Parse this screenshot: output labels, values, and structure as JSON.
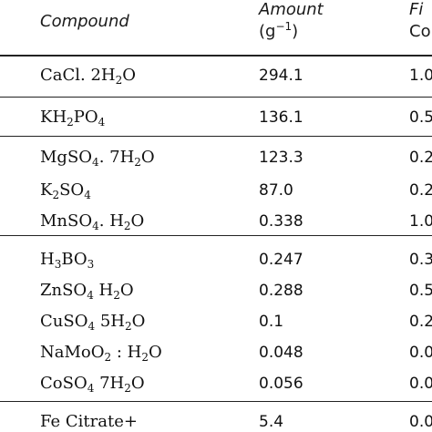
{
  "header": {
    "compound": "Compound",
    "amount_line1": "Amount",
    "amount_unit_base": "(g",
    "amount_unit_exp": "−1",
    "amount_unit_close": ")",
    "final_line1": "Fi",
    "final_line2": "Co"
  },
  "rows": [
    {
      "formula": [
        {
          "t": "CaCl. 2H"
        },
        {
          "s": "2"
        },
        {
          "t": "O"
        }
      ],
      "amount": "294.1",
      "final": "1.0"
    },
    {
      "formula": [
        {
          "t": "KH"
        },
        {
          "s": "2"
        },
        {
          "t": "PO"
        },
        {
          "s": "4"
        }
      ],
      "amount": "136.1",
      "final": "0.5"
    },
    {
      "formula": [
        {
          "t": "MgSO"
        },
        {
          "s": "4"
        },
        {
          "t": ". 7H"
        },
        {
          "s": "2"
        },
        {
          "t": "O"
        }
      ],
      "amount": "123.3",
      "final": "0.2"
    },
    {
      "formula": [
        {
          "t": "K"
        },
        {
          "s": "2"
        },
        {
          "t": "SO"
        },
        {
          "s": "4"
        }
      ],
      "amount": "87.0",
      "final": "0.2"
    },
    {
      "formula": [
        {
          "t": "MnSO"
        },
        {
          "s": "4"
        },
        {
          "t": ". H"
        },
        {
          "s": "2"
        },
        {
          "t": "O"
        }
      ],
      "amount": "0.338",
      "final": "1.0"
    },
    {
      "formula": [
        {
          "t": "H"
        },
        {
          "s": "3"
        },
        {
          "t": "BO"
        },
        {
          "s": "3"
        }
      ],
      "amount": "0.247",
      "final": "0.3"
    },
    {
      "formula": [
        {
          "t": "ZnSO"
        },
        {
          "s": "4"
        },
        {
          "t": " H"
        },
        {
          "s": "2"
        },
        {
          "t": "O"
        }
      ],
      "amount": "0.288",
      "final": "0.5"
    },
    {
      "formula": [
        {
          "t": "CuSO"
        },
        {
          "s": "4"
        },
        {
          "t": " 5H"
        },
        {
          "s": "2"
        },
        {
          "t": "O"
        }
      ],
      "amount": "0.1",
      "final": "0.2"
    },
    {
      "formula": [
        {
          "t": "NaMoO"
        },
        {
          "s": "2"
        },
        {
          "t": " : H"
        },
        {
          "s": "2"
        },
        {
          "t": "O"
        }
      ],
      "amount": "0.048",
      "final": "0.0"
    },
    {
      "formula": [
        {
          "t": "CoSO"
        },
        {
          "s": "4"
        },
        {
          "t": " 7H"
        },
        {
          "s": "2"
        },
        {
          "t": "O"
        }
      ],
      "amount": "0.056",
      "final": "0.0"
    },
    {
      "formula": [
        {
          "t": "Fe Citrate+"
        }
      ],
      "amount": "5.4",
      "final": "0.0"
    }
  ]
}
